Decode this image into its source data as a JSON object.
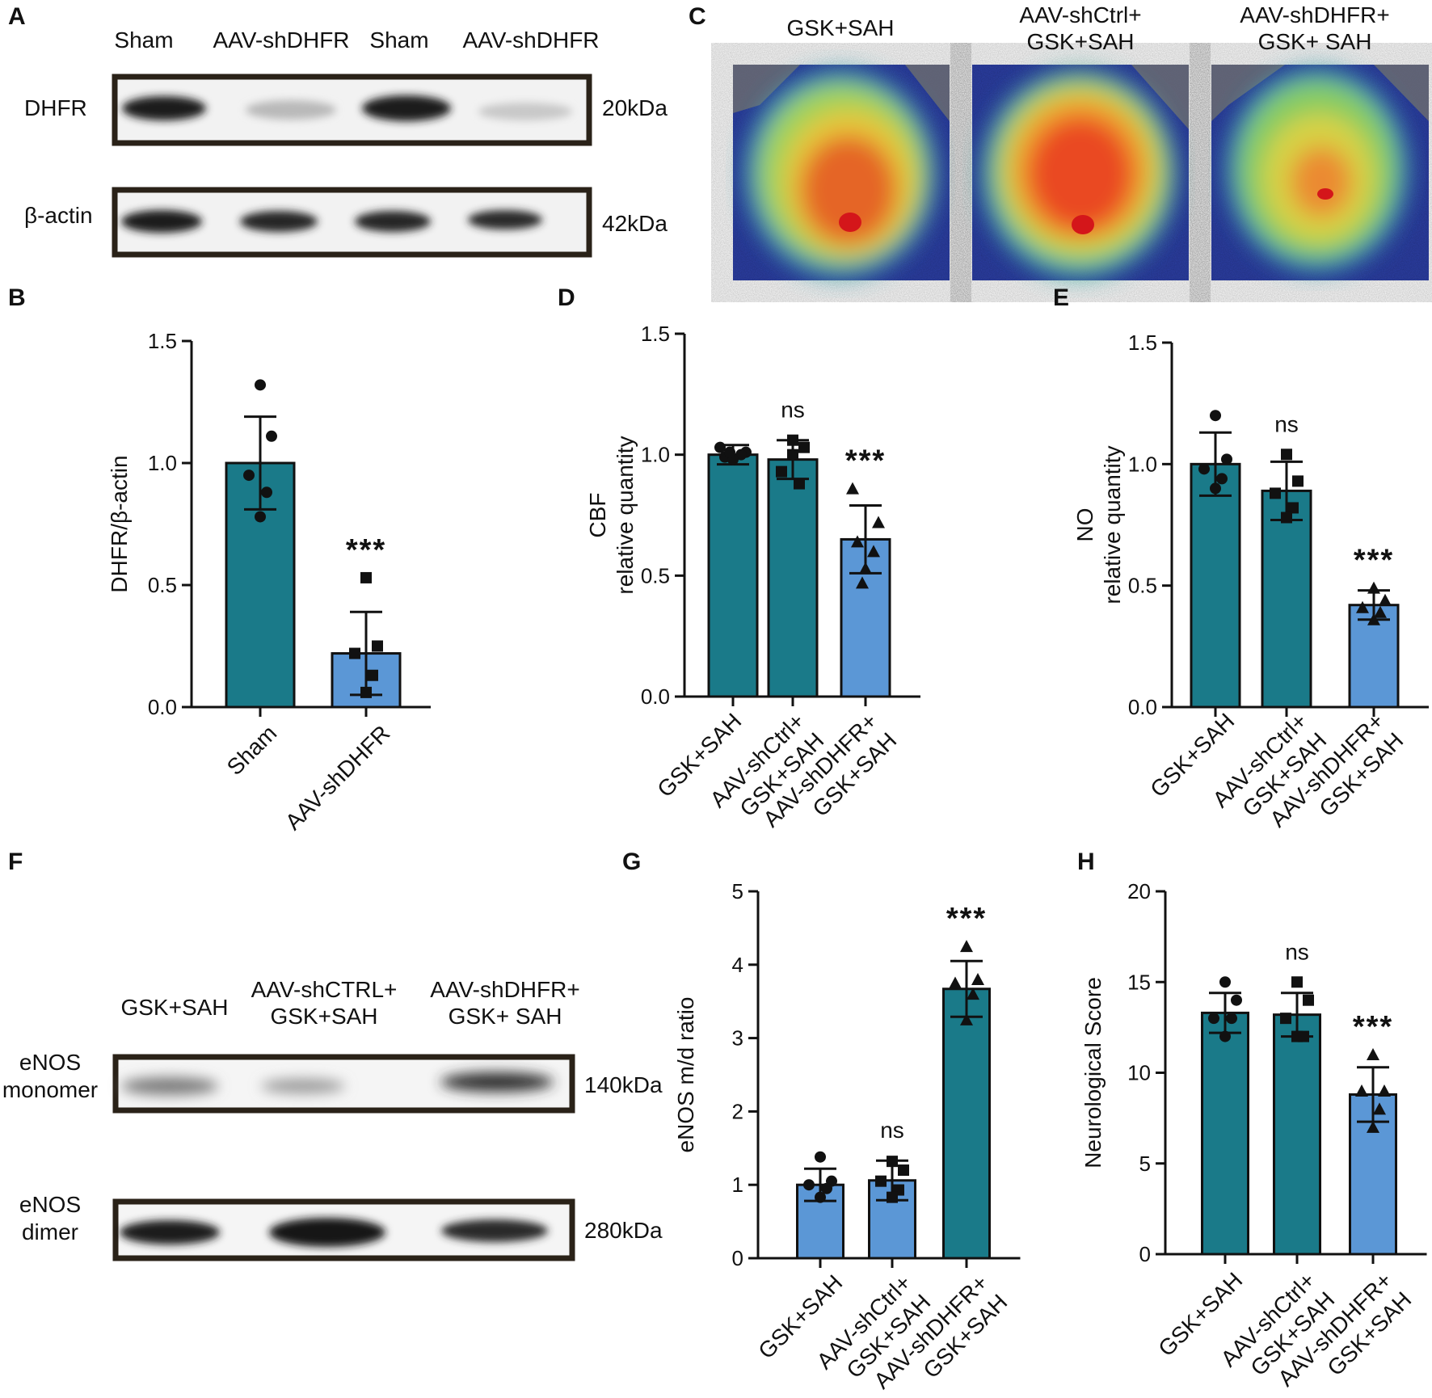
{
  "colors": {
    "teal": "#1a7a89",
    "blue": "#5b97d6",
    "ink": "#111111"
  },
  "panels": {
    "A": {
      "letter": "A",
      "lanes": [
        "Sham",
        "AAV-shDHFR",
        "Sham",
        "AAV-shDHFR"
      ],
      "blots": [
        {
          "label": "DHFR",
          "kda": "20kDa"
        },
        {
          "label": "β-actin",
          "kda": "42kDa"
        }
      ]
    },
    "C": {
      "letter": "C",
      "images": [
        {
          "title": "GSK+SAH"
        },
        {
          "title": "AAV-shCtrl+\nGSK+SAH"
        },
        {
          "title": "AAV-shDHFR+\nGSK+ SAH"
        }
      ]
    },
    "F": {
      "letter": "F",
      "lanes": [
        "GSK+SAH",
        "AAV-shCTRL+\nGSK+SAH",
        "AAV-shDHFR+\nGSK+ SAH"
      ],
      "blots": [
        {
          "label": "eNOS\nmonomer",
          "kda": "140kDa"
        },
        {
          "label": "eNOS\ndimer",
          "kda": "280kDa"
        }
      ]
    }
  },
  "chart_data": [
    {
      "panel": "B",
      "type": "bar",
      "ylabel": "DHFR/β-actin",
      "ylim": [
        0,
        1.5
      ],
      "yticks": [
        "0.0",
        "0.5",
        "1.0",
        "1.5"
      ],
      "categories": [
        "Sham",
        "AAV-shDHFR"
      ],
      "values": [
        1.0,
        0.22
      ],
      "errors": [
        0.19,
        0.17
      ],
      "colors": [
        "teal",
        "blue"
      ],
      "markers": [
        "circle",
        "square"
      ],
      "points": [
        [
          1.32,
          1.11,
          0.95,
          0.88,
          0.78
        ],
        [
          0.53,
          0.25,
          0.22,
          0.13,
          0.06
        ]
      ],
      "annotations": [
        "",
        "***"
      ]
    },
    {
      "panel": "D",
      "type": "bar",
      "ylabel": "CBF\nrelative quantity",
      "ylim": [
        0,
        1.5
      ],
      "yticks": [
        "0.0",
        "0.5",
        "1.0",
        "1.5"
      ],
      "categories": [
        "GSK+SAH",
        "AAV-shCtrl+\nGSK+SAH",
        "AAV-shDHFR+\nGSK+SAH"
      ],
      "values": [
        1.0,
        0.98,
        0.65
      ],
      "errors": [
        0.04,
        0.08,
        0.14
      ],
      "colors": [
        "teal",
        "teal",
        "blue"
      ],
      "markers": [
        "circle",
        "square",
        "triangle"
      ],
      "points": [
        [
          1.03,
          1.01,
          0.99,
          1.0,
          0.98,
          1.01
        ],
        [
          1.06,
          1.03,
          0.93,
          0.88,
          1.0
        ],
        [
          0.86,
          0.72,
          0.64,
          0.6,
          0.53,
          0.47
        ]
      ],
      "annotations": [
        "",
        "ns",
        "***"
      ]
    },
    {
      "panel": "E",
      "type": "bar",
      "ylabel": "NO\nrelative quantity",
      "ylim": [
        0,
        1.5
      ],
      "yticks": [
        "0.0",
        "0.5",
        "1.0",
        "1.5"
      ],
      "categories": [
        "GSK+SAH",
        "AAV-shCtrl+\nGSK+SAH",
        "AAV-shDHFR+\nGSK+SAH"
      ],
      "values": [
        1.0,
        0.89,
        0.42
      ],
      "errors": [
        0.13,
        0.12,
        0.06
      ],
      "colors": [
        "teal",
        "teal",
        "blue"
      ],
      "markers": [
        "circle",
        "square",
        "triangle"
      ],
      "points": [
        [
          1.2,
          1.02,
          0.98,
          0.94,
          0.9
        ],
        [
          1.04,
          0.93,
          0.88,
          0.82,
          0.78
        ],
        [
          0.49,
          0.44,
          0.41,
          0.39,
          0.36
        ]
      ],
      "annotations": [
        "",
        "ns",
        "***"
      ]
    },
    {
      "panel": "G",
      "type": "bar",
      "ylabel": "eNOS m/d ratio",
      "ylim": [
        0,
        5
      ],
      "yticks": [
        "0",
        "1",
        "2",
        "3",
        "4",
        "5"
      ],
      "categories": [
        "GSK+SAH",
        "AAV-shCtrl+\nGSK+SAH",
        "AAV-shDHFR+\nGSK+SAH"
      ],
      "values": [
        1.0,
        1.06,
        3.67
      ],
      "errors": [
        0.22,
        0.27,
        0.38
      ],
      "colors": [
        "blue",
        "blue",
        "teal"
      ],
      "markers": [
        "circle",
        "square",
        "triangle"
      ],
      "points": [
        [
          1.38,
          1.05,
          1.0,
          0.95,
          0.83
        ],
        [
          1.32,
          1.2,
          1.05,
          0.93,
          0.83
        ],
        [
          4.25,
          3.8,
          3.75,
          3.6,
          3.25
        ]
      ],
      "annotations": [
        "",
        "ns",
        "***"
      ]
    },
    {
      "panel": "H",
      "type": "bar",
      "ylabel": "Neurological Score",
      "ylim": [
        0,
        20
      ],
      "yticks": [
        "0",
        "5",
        "10",
        "15",
        "20"
      ],
      "categories": [
        "GSK+SAH",
        "AAV-shCtrl+\nGSK+SAH",
        "AAV-shDHFR+\nGSK+SAH"
      ],
      "values": [
        13.3,
        13.2,
        8.8
      ],
      "errors": [
        1.1,
        1.2,
        1.5
      ],
      "colors": [
        "teal",
        "teal",
        "blue"
      ],
      "markers": [
        "circle",
        "square",
        "triangle"
      ],
      "points": [
        [
          15.0,
          14.0,
          13.0,
          13.0,
          12.0
        ],
        [
          15.0,
          14.0,
          13.0,
          12.0,
          12.0
        ],
        [
          11.0,
          9.0,
          9.0,
          8.0,
          7.0
        ]
      ],
      "annotations": [
        "",
        "ns",
        "***"
      ]
    }
  ]
}
